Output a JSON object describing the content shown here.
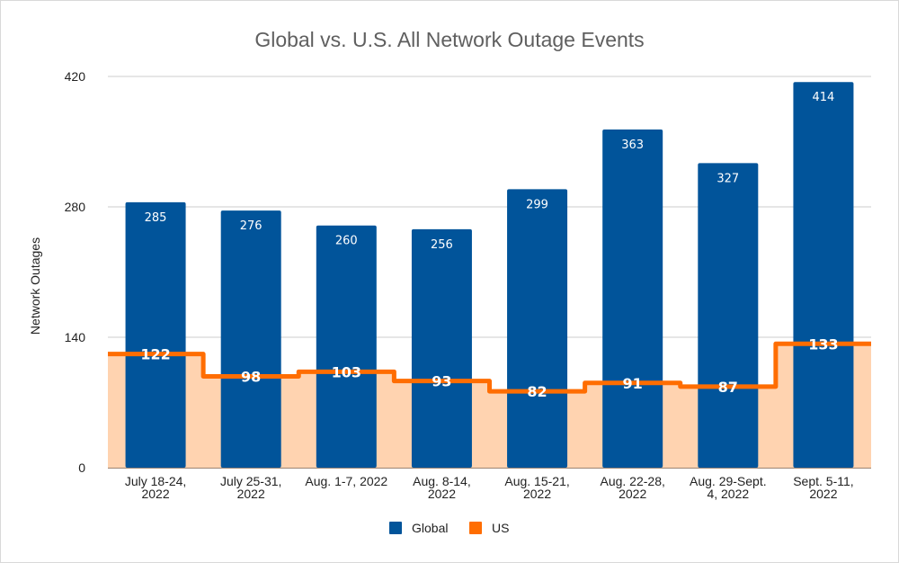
{
  "chart_data": {
    "type": "bar",
    "title": "Global vs. U.S. All Network Outage Events",
    "xlabel": "",
    "ylabel": "Network Outages",
    "ylim": [
      0,
      420
    ],
    "yticks": [
      "0",
      "140",
      "280",
      "420"
    ],
    "grid": true,
    "legend_position": "bottom",
    "categories": [
      [
        "July 18-24,",
        "2022"
      ],
      [
        "July 25-31,",
        "2022"
      ],
      [
        "Aug. 1-7, 2022"
      ],
      [
        "Aug. 8-14,",
        "2022"
      ],
      [
        "Aug. 15-21,",
        "2022"
      ],
      [
        "Aug. 22-28,",
        "2022"
      ],
      [
        "Aug. 29-Sept.",
        "4, 2022"
      ],
      [
        "Sept. 5-11,",
        "2022"
      ]
    ],
    "series": [
      {
        "name": "Global",
        "type": "bar",
        "color": "#01549a",
        "values": [
          285,
          276,
          260,
          256,
          299,
          363,
          327,
          414
        ]
      },
      {
        "name": "US",
        "type": "stepped-area",
        "color": "#ff6d01",
        "fill": "#ffd3b0",
        "values": [
          122,
          98,
          103,
          93,
          82,
          91,
          87,
          133
        ]
      }
    ]
  }
}
